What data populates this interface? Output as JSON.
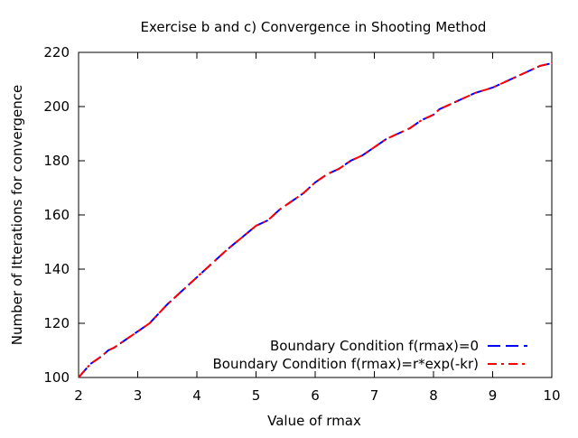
{
  "chart_data": {
    "type": "line",
    "title": "Exercise b and c) Convergence in Shooting Method",
    "xlabel": "Value of rmax",
    "ylabel": "Number of Itterations for convergence",
    "xlim": [
      2,
      10
    ],
    "ylim": [
      100,
      220
    ],
    "x_ticks": [
      2,
      3,
      4,
      5,
      6,
      7,
      8,
      9,
      10
    ],
    "y_ticks": [
      100,
      120,
      140,
      160,
      180,
      200,
      220
    ],
    "grid": false,
    "legend_position": "bottom-right",
    "series": [
      {
        "name": "Boundary Condition f(rmax)=0",
        "color": "#0000ff",
        "dash": "dashed",
        "x": [
          2.0,
          2.2,
          2.4,
          2.5,
          2.6,
          2.8,
          3.0,
          3.2,
          3.5,
          4.0,
          4.5,
          5.0,
          5.2,
          5.4,
          5.6,
          5.8,
          6.0,
          6.2,
          6.4,
          6.6,
          6.8,
          7.0,
          7.2,
          7.4,
          7.6,
          7.8,
          8.0,
          8.1,
          8.3,
          8.5,
          8.7,
          9.0,
          9.2,
          9.4,
          9.6,
          9.8,
          10.0
        ],
        "y": [
          100,
          105,
          108,
          110,
          111,
          114,
          117,
          120,
          127,
          137,
          147,
          156,
          158,
          162,
          165,
          168,
          172,
          175,
          177,
          180,
          182,
          185,
          188,
          190,
          192,
          195,
          197,
          199,
          201,
          203,
          205,
          207,
          209,
          211,
          213,
          215,
          216
        ]
      },
      {
        "name": "Boundary Condition f(rmax)=r*exp(-kr)",
        "color": "#ff0000",
        "dash": "dash-dot",
        "x": [
          2.0,
          2.2,
          2.4,
          2.5,
          2.6,
          2.8,
          3.0,
          3.2,
          3.5,
          4.0,
          4.5,
          5.0,
          5.2,
          5.4,
          5.6,
          5.8,
          6.0,
          6.2,
          6.4,
          6.6,
          6.8,
          7.0,
          7.2,
          7.4,
          7.6,
          7.8,
          8.0,
          8.1,
          8.3,
          8.5,
          8.7,
          9.0,
          9.2,
          9.4,
          9.6,
          9.8,
          10.0
        ],
        "y": [
          100,
          105,
          108,
          110,
          111,
          114,
          117,
          120,
          127,
          137,
          147,
          156,
          158,
          162,
          165,
          168,
          172,
          175,
          177,
          180,
          182,
          185,
          188,
          190,
          192,
          195,
          197,
          199,
          201,
          203,
          205,
          207,
          209,
          211,
          213,
          215,
          216
        ]
      }
    ]
  }
}
